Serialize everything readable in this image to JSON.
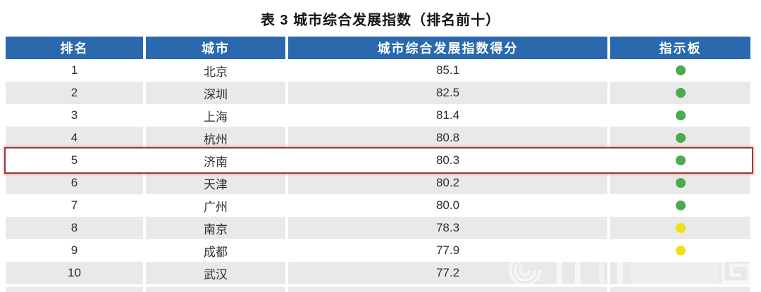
{
  "title": "表 3 城市综合发展指数（排名前十）",
  "table": {
    "columns": [
      {
        "label": "排名"
      },
      {
        "label": "城市"
      },
      {
        "label": "城市综合发展指数得分"
      },
      {
        "label": "指示板"
      }
    ],
    "rows": [
      {
        "rank": "1",
        "city": "北京",
        "score": "85.1",
        "indicator": "green",
        "highlighted": false
      },
      {
        "rank": "2",
        "city": "深圳",
        "score": "82.5",
        "indicator": "green",
        "highlighted": false
      },
      {
        "rank": "3",
        "city": "上海",
        "score": "81.4",
        "indicator": "green",
        "highlighted": false
      },
      {
        "rank": "4",
        "city": "杭州",
        "score": "80.8",
        "indicator": "green",
        "highlighted": false
      },
      {
        "rank": "5",
        "city": "济南",
        "score": "80.3",
        "indicator": "green",
        "highlighted": true
      },
      {
        "rank": "6",
        "city": "天津",
        "score": "80.2",
        "indicator": "green",
        "highlighted": false
      },
      {
        "rank": "7",
        "city": "广州",
        "score": "80.0",
        "indicator": "green",
        "highlighted": false
      },
      {
        "rank": "8",
        "city": "南京",
        "score": "78.3",
        "indicator": "yellow",
        "highlighted": false
      },
      {
        "rank": "9",
        "city": "成都",
        "score": "77.9",
        "indicator": "yellow",
        "highlighted": false
      },
      {
        "rank": "10",
        "city": "武汉",
        "score": "77.2",
        "indicator": "none",
        "highlighted": false
      }
    ]
  },
  "colors": {
    "header_bg": "#2a69ad",
    "header_text": "#ffffff",
    "row_stripe": "#e9e9e9",
    "indicator_green": "#4aab4f",
    "indicator_yellow": "#f0e011",
    "highlight_border": "#9e3a38"
  },
  "watermark": {
    "description": "faint semi-transparent logo watermark over bottom-right rows"
  }
}
